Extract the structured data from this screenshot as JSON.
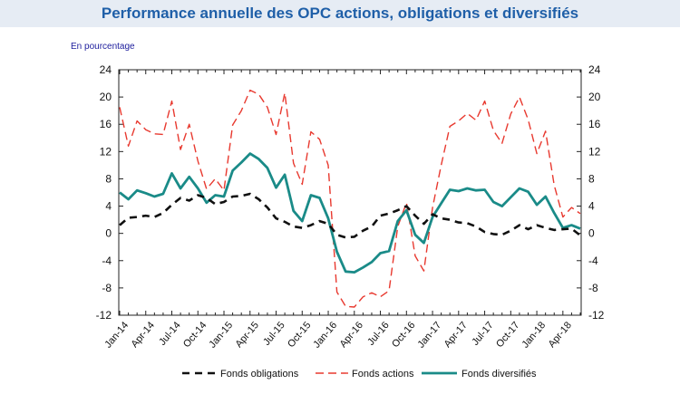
{
  "header": {
    "title": "Performance annuelle des OPC actions, obligations et diversifiés",
    "unit_label": "En pourcentage"
  },
  "colors": {
    "obligations": "#111111",
    "actions": "#e8392f",
    "diversifies": "#1a8b88",
    "title": "#1f5fa8",
    "title_band": "#e6ecf4"
  },
  "chart_data": {
    "type": "line",
    "title": "Performance annuelle des OPC actions, obligations et diversifiés",
    "ylabel": "En pourcentage",
    "ylim": [
      -12,
      24
    ],
    "yticks": [
      -12,
      -8,
      -4,
      0,
      4,
      8,
      12,
      16,
      20,
      24
    ],
    "grid": false,
    "legend_position": "bottom",
    "x_tick_labels": [
      "Jan-14",
      "Apr-14",
      "Jul-14",
      "Oct-14",
      "Jan-15",
      "Apr-15",
      "Jul-15",
      "Oct-15",
      "Jan-16",
      "Apr-16",
      "Jul-16",
      "Oct-16",
      "Jan-17",
      "Apr-17",
      "Jul-17",
      "Oct-17",
      "Jan-18",
      "Apr-18"
    ],
    "x": [
      "Jan-14",
      "Feb-14",
      "Mar-14",
      "Apr-14",
      "May-14",
      "Jun-14",
      "Jul-14",
      "Aug-14",
      "Sep-14",
      "Oct-14",
      "Nov-14",
      "Dec-14",
      "Jan-15",
      "Feb-15",
      "Mar-15",
      "Apr-15",
      "May-15",
      "Jun-15",
      "Jul-15",
      "Aug-15",
      "Sep-15",
      "Oct-15",
      "Nov-15",
      "Dec-15",
      "Jan-16",
      "Feb-16",
      "Mar-16",
      "Apr-16",
      "May-16",
      "Jun-16",
      "Jul-16",
      "Aug-16",
      "Sep-16",
      "Oct-16",
      "Nov-16",
      "Dec-16",
      "Jan-17",
      "Feb-17",
      "Mar-17",
      "Apr-17",
      "May-17",
      "Jun-17",
      "Jul-17",
      "Aug-17",
      "Sep-17",
      "Oct-17",
      "Nov-17",
      "Dec-17",
      "Jan-18",
      "Feb-18",
      "Mar-18",
      "Apr-18",
      "May-18",
      "Jun-18"
    ],
    "series": [
      {
        "name": "Fonds obligations",
        "style": "dashed-bold",
        "values": [
          1.2,
          2.3,
          2.4,
          2.6,
          2.4,
          3.0,
          4.2,
          5.2,
          4.8,
          5.6,
          5.2,
          4.3,
          4.6,
          5.4,
          5.5,
          5.8,
          5.0,
          3.8,
          2.2,
          1.7,
          1.0,
          0.8,
          1.2,
          1.8,
          1.4,
          -0.2,
          -0.6,
          -0.5,
          0.4,
          1.0,
          2.6,
          2.9,
          3.4,
          4.0,
          2.6,
          1.4,
          2.8,
          2.2,
          2.0,
          1.6,
          1.5,
          1.0,
          0.2,
          -0.1,
          -0.2,
          0.4,
          1.2,
          0.6,
          1.2,
          0.8,
          0.5,
          0.6,
          0.7,
          -0.3
        ]
      },
      {
        "name": "Fonds actions",
        "style": "dashed",
        "values": [
          18.5,
          12.8,
          16.5,
          15.2,
          14.6,
          14.5,
          19.4,
          12.3,
          16.0,
          10.6,
          6.5,
          8.0,
          6.3,
          15.9,
          18.0,
          21.0,
          20.4,
          18.5,
          14.5,
          20.6,
          10.3,
          7.2,
          14.9,
          13.8,
          10.0,
          -8.6,
          -10.7,
          -10.8,
          -9.3,
          -8.7,
          -9.3,
          -8.4,
          1.0,
          4.5,
          -3.3,
          -5.5,
          3.8,
          10.0,
          15.7,
          16.5,
          17.6,
          16.6,
          19.4,
          15.1,
          13.2,
          17.5,
          20.0,
          16.7,
          11.7,
          15.0,
          7.1,
          2.4,
          3.8,
          2.9
        ]
      },
      {
        "name": "Fonds diversifiés",
        "style": "solid",
        "values": [
          6.0,
          5.0,
          6.3,
          5.9,
          5.4,
          5.8,
          8.8,
          6.6,
          8.3,
          6.6,
          4.5,
          5.6,
          5.4,
          9.2,
          10.4,
          11.7,
          10.9,
          9.6,
          6.7,
          8.6,
          3.3,
          1.8,
          5.6,
          5.2,
          2.2,
          -2.7,
          -5.6,
          -5.7,
          -5.0,
          -4.2,
          -2.9,
          -2.6,
          1.8,
          3.4,
          -0.2,
          -1.4,
          2.4,
          4.4,
          6.4,
          6.2,
          6.6,
          6.3,
          6.4,
          4.6,
          4.0,
          5.3,
          6.6,
          6.1,
          4.2,
          5.4,
          3.0,
          0.8,
          1.2,
          0.7
        ]
      }
    ]
  }
}
